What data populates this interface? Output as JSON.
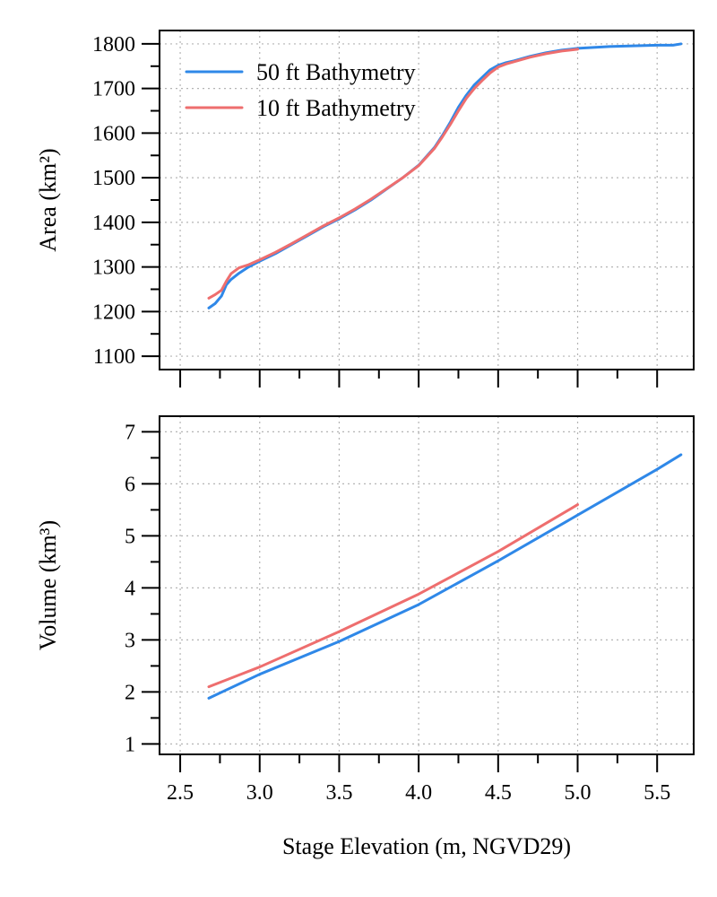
{
  "chart_data": [
    {
      "type": "line",
      "panel": "top",
      "ylabel": "Area (km²)",
      "xlabel": "",
      "xlim": [
        2.37,
        5.73
      ],
      "ylim": [
        1070,
        1830
      ],
      "yticks": [
        1100,
        1200,
        1300,
        1400,
        1500,
        1600,
        1700,
        1800
      ],
      "yticks_minor": [
        1150,
        1250,
        1350,
        1450,
        1550,
        1650,
        1750
      ],
      "xticks": [
        2.5,
        3.0,
        3.5,
        4.0,
        4.5,
        5.0,
        5.5
      ],
      "xticks_minor": [
        2.75,
        3.25,
        3.75,
        4.25,
        4.75,
        5.25
      ],
      "show_x_tick_labels": false,
      "grid": true,
      "legend_position": "top-left",
      "series": [
        {
          "name": "50 ft Bathymetry",
          "color": "#2f88e8",
          "x": [
            2.68,
            2.72,
            2.76,
            2.79,
            2.82,
            2.87,
            2.93,
            3.0,
            3.1,
            3.2,
            3.3,
            3.4,
            3.5,
            3.6,
            3.7,
            3.8,
            3.9,
            4.0,
            4.1,
            4.15,
            4.2,
            4.25,
            4.3,
            4.35,
            4.4,
            4.45,
            4.5,
            4.55,
            4.6,
            4.7,
            4.8,
            4.9,
            5.0,
            5.1,
            5.2,
            5.3,
            5.4,
            5.5,
            5.6,
            5.65
          ],
          "y": [
            1208,
            1218,
            1235,
            1260,
            1272,
            1286,
            1300,
            1313,
            1330,
            1350,
            1370,
            1390,
            1408,
            1428,
            1450,
            1475,
            1500,
            1528,
            1568,
            1595,
            1625,
            1658,
            1685,
            1708,
            1725,
            1742,
            1752,
            1758,
            1762,
            1772,
            1780,
            1786,
            1790,
            1792,
            1794,
            1795,
            1796,
            1797,
            1797,
            1800
          ]
        },
        {
          "name": "10 ft Bathymetry",
          "color": "#ee6e6e",
          "x": [
            2.68,
            2.72,
            2.76,
            2.79,
            2.82,
            2.87,
            2.93,
            3.0,
            3.1,
            3.2,
            3.3,
            3.4,
            3.5,
            3.6,
            3.7,
            3.8,
            3.9,
            4.0,
            4.1,
            4.15,
            4.2,
            4.25,
            4.3,
            4.35,
            4.4,
            4.45,
            4.5,
            4.55,
            4.6,
            4.7,
            4.8,
            4.9,
            5.0
          ],
          "y": [
            1230,
            1238,
            1248,
            1268,
            1285,
            1298,
            1305,
            1316,
            1333,
            1352,
            1372,
            1392,
            1410,
            1430,
            1452,
            1476,
            1500,
            1527,
            1566,
            1592,
            1620,
            1650,
            1678,
            1700,
            1718,
            1735,
            1748,
            1755,
            1760,
            1770,
            1778,
            1784,
            1788
          ]
        }
      ]
    },
    {
      "type": "line",
      "panel": "bottom",
      "ylabel": "Volume (km³)",
      "xlabel": "Stage Elevation (m, NGVD29)",
      "xlim": [
        2.37,
        5.73
      ],
      "ylim": [
        0.8,
        7.3
      ],
      "yticks": [
        1,
        2,
        3,
        4,
        5,
        6,
        7
      ],
      "yticks_minor": [
        1.5,
        2.5,
        3.5,
        4.5,
        5.5,
        6.5
      ],
      "xticks": [
        2.5,
        3.0,
        3.5,
        4.0,
        4.5,
        5.0,
        5.5
      ],
      "xtick_labels": [
        "2.5",
        "3.0",
        "3.5",
        "4.0",
        "4.5",
        "5.0",
        "5.5"
      ],
      "xticks_minor": [
        2.75,
        3.25,
        3.75,
        4.25,
        4.75,
        5.25
      ],
      "grid": true,
      "series": [
        {
          "name": "50 ft Bathymetry",
          "color": "#2f88e8",
          "x": [
            2.68,
            3.0,
            3.5,
            4.0,
            4.5,
            5.0,
            5.5,
            5.65
          ],
          "y": [
            1.88,
            2.34,
            2.97,
            3.68,
            4.52,
            5.4,
            6.28,
            6.56
          ]
        },
        {
          "name": "10 ft Bathymetry",
          "color": "#ee6e6e",
          "x": [
            2.68,
            3.0,
            3.5,
            4.0,
            4.5,
            5.0
          ],
          "y": [
            2.1,
            2.48,
            3.16,
            3.88,
            4.7,
            5.6
          ]
        }
      ]
    }
  ]
}
